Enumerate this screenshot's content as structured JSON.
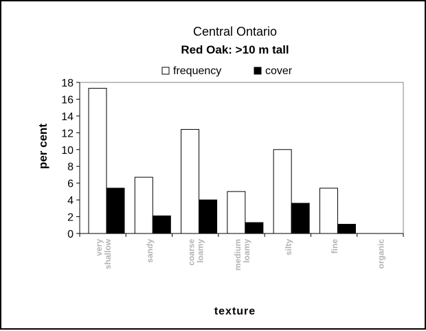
{
  "chart_data": {
    "type": "bar",
    "title": "Central Ontario",
    "subtitle": "Red Oak: >10 m tall",
    "xlabel": "texture",
    "ylabel": "per cent",
    "ylim": [
      0,
      18
    ],
    "yticks": [
      0,
      2,
      4,
      6,
      8,
      10,
      12,
      14,
      16,
      18
    ],
    "grid": false,
    "legend_position": "top",
    "categories": [
      [
        "very",
        "shallow"
      ],
      [
        "sandy"
      ],
      [
        "coarse",
        "loamy"
      ],
      [
        "medium",
        "loamy"
      ],
      [
        "silty"
      ],
      [
        "fine"
      ],
      [
        "organic"
      ]
    ],
    "series": [
      {
        "name": "frequency",
        "color": "#ffffff",
        "values": [
          17.3,
          6.7,
          12.4,
          5.0,
          10.0,
          5.4,
          0
        ]
      },
      {
        "name": "cover",
        "color": "#000000",
        "values": [
          5.4,
          2.1,
          4.0,
          1.3,
          3.6,
          1.1,
          0
        ]
      }
    ],
    "colors": {
      "frame": "#000000",
      "tick_label_category": "#b3b3b3"
    }
  }
}
